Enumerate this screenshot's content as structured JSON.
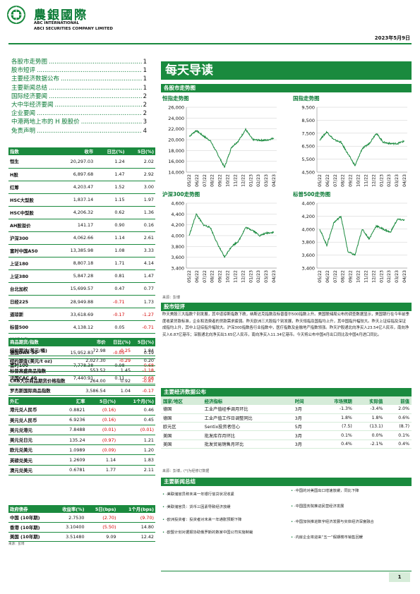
{
  "header": {
    "cn_name": "農銀國際",
    "en_name_1": "ABC INTERNATIONAL",
    "en_name_2": "ABCI SECURITIES COMPANY LIMITED",
    "date": "2023年5月9日",
    "brand_color": "#1a8a3e"
  },
  "toc": [
    {
      "label": "各股市走势图",
      "page": "1"
    },
    {
      "label": "股市短评",
      "page": "1"
    },
    {
      "label": "主要经济数据公布",
      "page": "1"
    },
    {
      "label": "主要新闻总结",
      "page": "1"
    },
    {
      "label": "国际经济要闻",
      "page": "2"
    },
    {
      "label": "大中华经济要闻",
      "page": "2"
    },
    {
      "label": "企业要闻",
      "page": "2"
    },
    {
      "label": "中港两地上市的 H 股股价",
      "page": "3"
    },
    {
      "label": "免责声明",
      "page": "4"
    }
  ],
  "indices": {
    "headers": [
      "指数",
      "收市",
      "日比(%)",
      "5日(%)"
    ],
    "rows": [
      {
        "name": "恒生",
        "close": "20,297.03",
        "d1": "1.24",
        "d5": "2.02"
      },
      {
        "name": "H股",
        "close": "6,897.68",
        "d1": "1.47",
        "d5": "2.92"
      },
      {
        "name": "红筹",
        "close": "4,203.47",
        "d1": "1.52",
        "d5": "3.00"
      },
      {
        "name": "HSC大型股",
        "close": "1,837.14",
        "d1": "1.15",
        "d5": "1.97"
      },
      {
        "name": "HSC中型股",
        "close": "4,206.32",
        "d1": "0.62",
        "d5": "1.36"
      },
      {
        "name": "AH股溢价",
        "close": "141.17",
        "d1": "0.90",
        "d5": "0.16"
      },
      {
        "name": "沪深300",
        "close": "4,062.66",
        "d1": "1.14",
        "d5": "2.61"
      },
      {
        "name": "富时中国A50",
        "close": "13,385.98",
        "d1": "1.08",
        "d5": "3.33"
      },
      {
        "name": "上证180",
        "close": "8,807.18",
        "d1": "1.71",
        "d5": "4.14"
      },
      {
        "name": "上证380",
        "close": "5,847.28",
        "d1": "0.81",
        "d5": "1.47"
      },
      {
        "name": "台北加权",
        "close": "15,699.57",
        "d1": "0.47",
        "d5": "0.77"
      },
      {
        "name": "日经225",
        "close": "28,949.88",
        "d1": "-0.71",
        "d5": "1.73"
      },
      {
        "name": "道琼斯",
        "close": "33,618.69",
        "d1": "-0.17",
        "d5": "-1.27"
      },
      {
        "name": "标普500",
        "close": "4,138.12",
        "d1": "0.05",
        "d5": "-0.71"
      },
      {
        "name": "纳斯达克",
        "close": "12,256.92",
        "d1": "0.18",
        "d5": "0.36"
      },
      {
        "name": "德国DAX 30",
        "close": "15,952.83",
        "d1": "-0.05",
        "d5": "0.19"
      },
      {
        "name": "富时100",
        "close": "7,778.38",
        "d1": "0.98",
        "d5": "-0.68"
      },
      {
        "name": "法国CAC 40",
        "close": "7,440.91",
        "d1": "0.11",
        "d5": "-0.68"
      }
    ]
  },
  "commodities": {
    "headers": [
      "商品期货/指数",
      "市价",
      "日比(%)",
      "5日(%)"
    ],
    "rows": [
      {
        "name": "纽约期油(美元/桶)",
        "price": "72.98",
        "d1": "-0.25",
        "d5": "1.84"
      },
      {
        "name": "纽约期金(美元/t oz)",
        "price": "2,027.30",
        "d1": "-0.29",
        "d5": "0.20"
      },
      {
        "name": "标普高盛商品指数",
        "price": "553.52",
        "d1": "1.45",
        "d5": "-1.18"
      },
      {
        "name": "CRB大宗商品期货价格指数",
        "price": "264.00",
        "d1": "0.92",
        "d5": "-0.87"
      },
      {
        "name": "罗杰斯国际商品指数",
        "price": "3,586.54",
        "d1": "1.04",
        "d5": "-0.17"
      }
    ]
  },
  "fx": {
    "headers": [
      "外汇",
      "汇率",
      "5日(%)",
      "1个月(%)"
    ],
    "rows": [
      {
        "name": "港元兑人民币",
        "rate": "0.8821",
        "d5": "(0.16)",
        "m1": "0.46"
      },
      {
        "name": "美元兑人民币",
        "rate": "6.9236",
        "d5": "(0.16)",
        "m1": "0.45"
      },
      {
        "name": "美元兑港元",
        "rate": "7.8488",
        "d5": "(0.01)",
        "m1": "(0.01)"
      },
      {
        "name": "美元兑日元",
        "rate": "135.24",
        "d5": "(0.97)",
        "m1": "1.21"
      },
      {
        "name": "欧元兑美元",
        "rate": "1.0989",
        "d5": "(0.09)",
        "m1": "1.20"
      },
      {
        "name": "英磅兑美元",
        "rate": "1.2609",
        "d5": "1.14",
        "m1": "1.83"
      },
      {
        "name": "澳元兑美元",
        "rate": "0.6781",
        "d5": "1.77",
        "m1": "2.11"
      }
    ]
  },
  "bonds": {
    "headers": [
      "政府债券",
      "收益率(%)",
      "5日(bps)",
      "1个月(bps)"
    ],
    "rows": [
      {
        "name": "中国 (10年期)",
        "yield": "2.7530",
        "d5": "(2.70)",
        "m1": "(9.70)"
      },
      {
        "name": "香港 (10年期)",
        "yield": "3.10400",
        "d5": "(5.50)",
        "m1": "14.80"
      },
      {
        "name": "美国 (10年期)",
        "yield": "3.51480",
        "d5": "9.09",
        "m1": "12.42"
      }
    ],
    "source": "来源：彭博"
  },
  "title": "每天导读",
  "charts_section": "各股市走势图",
  "charts": [
    {
      "title": "恒指走势图",
      "ylim": [
        14000,
        26000
      ],
      "ticks": [
        "26,000",
        "24,000",
        "22,000",
        "20,000",
        "18,000",
        "16,000",
        "14,000"
      ]
    },
    {
      "title": "国指走势图",
      "ylim": [
        4500,
        9500
      ],
      "ticks": [
        "9,500",
        "8,500",
        "7,500",
        "6,500",
        "5,500",
        "4,500"
      ]
    },
    {
      "title": "沪深300走势图",
      "ylim": [
        3400,
        4600
      ],
      "ticks": [
        "4,600",
        "4,400",
        "4,200",
        "4,000",
        "3,800",
        "3,600",
        "3,400"
      ]
    },
    {
      "title": "标普500走势图",
      "ylim": [
        3400,
        4400
      ],
      "ticks": [
        "4,400",
        "4,200",
        "4,000",
        "3,800",
        "3,600",
        "3,400"
      ]
    }
  ],
  "chart_x_labels": [
    "05/22",
    "06/22",
    "07/22",
    "08/22",
    "09/22",
    "10/22",
    "11/22",
    "12/22",
    "01/23",
    "02/23",
    "03/23",
    "04/23"
  ],
  "chart_data": [
    {
      "type": "line",
      "title": "恒指走势图",
      "ylim": [
        14000,
        26000
      ],
      "x": [
        "05/22",
        "06/22",
        "07/22",
        "08/22",
        "09/22",
        "10/22",
        "11/22",
        "12/22",
        "01/23",
        "02/23",
        "03/23",
        "04/23",
        "05/23"
      ],
      "values": [
        20600,
        21700,
        20700,
        19800,
        17400,
        14900,
        18600,
        19800,
        21900,
        20000,
        19900,
        19900,
        20300
      ]
    },
    {
      "type": "line",
      "title": "国指走势图",
      "ylim": [
        4500,
        9500
      ],
      "x": [
        "05/22",
        "06/22",
        "07/22",
        "08/22",
        "09/22",
        "10/22",
        "11/22",
        "12/22",
        "01/23",
        "02/23",
        "03/23",
        "04/23",
        "05/23"
      ],
      "values": [
        7000,
        7600,
        7000,
        6800,
        5900,
        5000,
        6300,
        6700,
        7500,
        6800,
        6700,
        6700,
        6900
      ]
    },
    {
      "type": "line",
      "title": "沪深300走势图",
      "ylim": [
        3400,
        4600
      ],
      "x": [
        "05/22",
        "06/22",
        "07/22",
        "08/22",
        "09/22",
        "10/22",
        "11/22",
        "12/22",
        "01/23",
        "02/23",
        "03/23",
        "04/23",
        "05/23"
      ],
      "values": [
        4000,
        4400,
        4200,
        4150,
        3850,
        3600,
        3800,
        3900,
        4150,
        4100,
        4000,
        4050,
        4060
      ]
    },
    {
      "type": "line",
      "title": "标普500走势图",
      "ylim": [
        3400,
        4400
      ],
      "x": [
        "05/22",
        "06/22",
        "07/22",
        "08/22",
        "09/22",
        "10/22",
        "11/22",
        "12/22",
        "01/23",
        "02/23",
        "03/23",
        "04/23",
        "05/23"
      ],
      "values": [
        4000,
        3750,
        4100,
        4200,
        3650,
        3600,
        4000,
        3850,
        4050,
        4000,
        3950,
        4150,
        4140
      ]
    }
  ],
  "chart_source": "来源：彭博",
  "review": {
    "title": "股市短评",
    "text": "昨天美股三大指数个别发展，其中道琼斯指数下跌，纳斯达克指数及标普普尔500指数上升。美国联储局公布的调查数据显示，美国银行在今年前季度收紧贷款标准，企业和消费者的贷款需求疲弱。昨天欧洲三大股指个别发展，昨天恒指及国指均上升，其中国指升幅较大。昨天上证综指及深证成指均上升，其中上证综指升幅较大。沪深300指数各行业指数中，医疗指数及金融地产指数领涨。昨天沪股通北向净买入23.54亿人民币，南向净买入6.87亿港币；深股通北向净买出3.65亿人民币，南向净买入11.34亿港币。今天将公布中国4月出口同比及中国4月进口同比。"
  },
  "eco": {
    "title": "主要经济数据公布",
    "headers": [
      "国家/地区",
      "经济指标",
      "时间",
      "市场预期",
      "实际值",
      "前值"
    ],
    "rows": [
      {
        "region": "德国",
        "indicator": "工业产值经季调月环比",
        "time": "3月",
        "exp": "-1.3%",
        "act": "-3.4%",
        "prev": "2.0%"
      },
      {
        "region": "德国",
        "indicator": "工业产值工作日调整同比",
        "time": "3月",
        "exp": "1.8%",
        "act": "1.8%",
        "prev": "0.6%"
      },
      {
        "region": "欧元区",
        "indicator": "Sentix投资者信心",
        "time": "5月",
        "exp": "(7.5)",
        "act": "(13.1)",
        "prev": "(8.7)"
      },
      {
        "region": "美国",
        "indicator": "批发库存月环比",
        "time": "3月",
        "exp": "0.1%",
        "act": "0.0%",
        "prev": "0.1%"
      },
      {
        "region": "美国",
        "indicator": "批发贸易销售月环比",
        "time": "3月",
        "exp": "0.4%",
        "act": "-2.1%",
        "prev": "0.4%"
      }
    ],
    "source": "来源：彭博，(*)为经修订数据"
  },
  "news": {
    "title": "主要新闻总结",
    "left": [
      "·美联储官员称未来一年银行信贷状况收紧",
      "·美联储官员：货币三因素导致经济放缓",
      "·欧洲投资者：投资者对未来一年通胀预期下降",
      "·欧盟计划对据报协助俄罗斯的数家中国公司实施制裁"
    ],
    "right": [
      "·中国的对美国出口增速放缓，同比下降",
      "·中国国务院推进民营经济发展",
      "·中国加快推进数字经济发展与实体经济深度融合",
      "·内房企业将迎来“五一”假期楼市销售回暖"
    ]
  },
  "page_number": "1"
}
